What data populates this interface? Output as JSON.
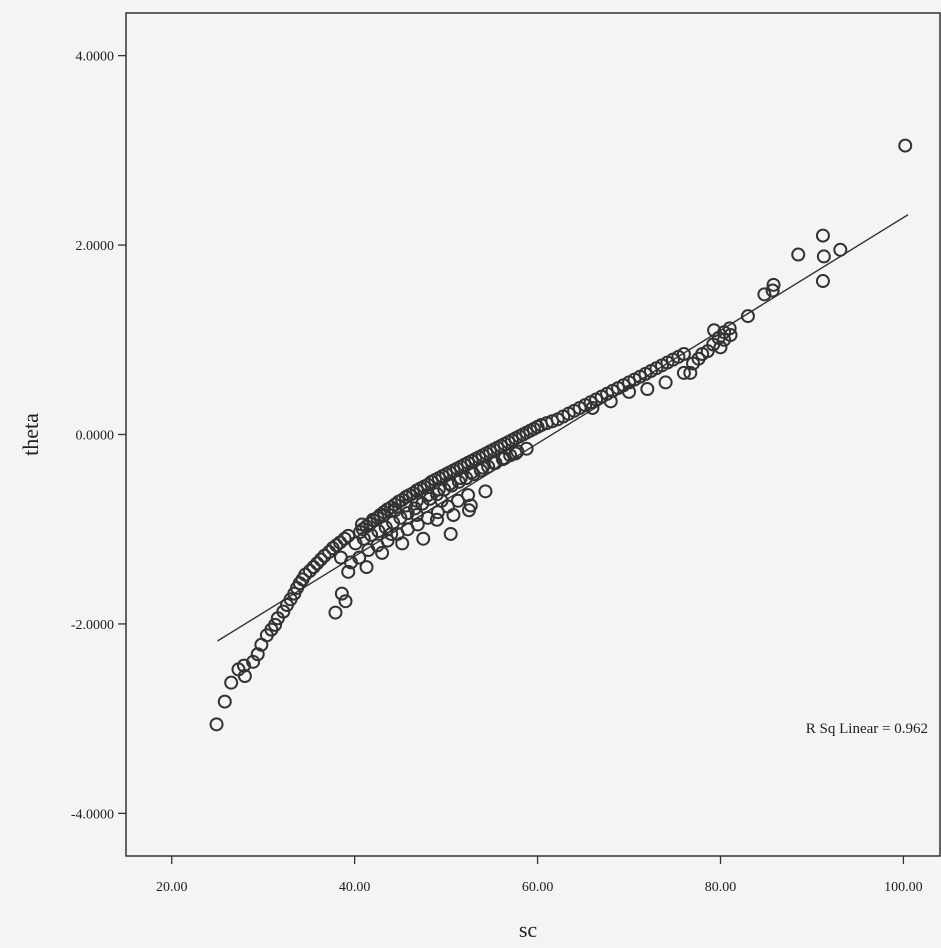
{
  "chart_data": {
    "type": "scatter",
    "title": "",
    "xlabel": "sc",
    "ylabel": "theta",
    "xlim": [
      15,
      104
    ],
    "ylim": [
      -4.45,
      4.45
    ],
    "xticks": [
      20,
      40,
      60,
      80,
      100
    ],
    "xtick_labels": [
      "20.00",
      "40.00",
      "60.00",
      "80.00",
      "100.00"
    ],
    "yticks": [
      4,
      2,
      0,
      -2,
      -4
    ],
    "ytick_labels": [
      "4.0000",
      "2.0000",
      "0.0000",
      "-2.0000",
      "-4.0000"
    ],
    "grid": false,
    "marker": "open-circle",
    "colors": {
      "marker": "#333333",
      "line": "#333333",
      "frame": "#333333",
      "background": "#f4f4f2"
    },
    "annotation": "R Sq Linear = 0.962",
    "fit_line": {
      "x": [
        25,
        100.5
      ],
      "y": [
        -2.18,
        2.32
      ]
    },
    "series": [
      {
        "x": [
          24.9,
          25.8,
          26.5,
          27.3,
          27.9,
          28.0,
          28.9,
          29.4,
          29.8,
          30.4,
          30.9,
          31.3,
          31.6,
          32.2,
          32.6,
          33.0,
          33.4,
          33.7,
          34.0,
          34.3,
          34.6,
          35.1,
          35.5,
          35.9,
          36.3,
          36.7,
          37.2,
          37.6,
          38.0,
          38.4,
          38.9,
          39.3,
          39.0,
          38.6,
          37.9,
          38.5,
          39.6,
          39.3,
          40.6,
          40.9,
          41.3,
          41.7,
          42.1,
          42.5,
          42.8,
          43.2,
          43.6,
          44.0,
          44.4,
          44.8,
          45.2,
          45.6,
          46.0,
          46.4,
          46.8,
          47.2,
          47.6,
          48.0,
          48.4,
          48.8,
          49.2,
          49.6,
          50.0,
          50.4,
          50.8,
          51.2,
          51.6,
          52.0,
          52.4,
          52.8,
          53.2,
          53.6,
          54.0,
          54.4,
          54.8,
          55.2,
          55.6,
          56.0,
          56.4,
          56.8,
          57.2,
          57.6,
          58.0,
          58.4,
          58.8,
          59.2,
          59.6,
          60.0,
          60.4,
          40.1,
          41.0,
          41.8,
          42.6,
          43.4,
          44.2,
          45.0,
          45.8,
          46.6,
          47.4,
          48.2,
          49.0,
          49.8,
          50.6,
          51.4,
          52.2,
          53.0,
          53.8,
          54.6,
          55.4,
          56.2,
          57.0,
          57.8,
          40.5,
          41.5,
          42.5,
          43.6,
          44.7,
          45.8,
          46.9,
          48.0,
          49.1,
          50.2,
          51.3,
          52.4,
          40.8,
          42.0,
          43.2,
          44.4,
          45.6,
          46.8,
          48.0,
          49.2,
          50.4,
          51.6,
          52.8,
          54.0,
          55.2,
          56.4,
          57.6,
          58.8,
          41.3,
          43.0,
          45.2,
          47.5,
          49.0,
          50.8,
          52.5,
          54.3,
          44.0,
          46.8,
          49.5,
          52.7,
          50.5,
          61.0,
          61.6,
          62.2,
          62.8,
          63.4,
          64.0,
          64.6,
          65.2,
          65.8,
          66.4,
          67.0,
          67.6,
          68.2,
          68.8,
          69.4,
          70.0,
          70.6,
          71.2,
          71.8,
          72.4,
          73.0,
          73.6,
          74.2,
          74.8,
          75.4,
          76.0,
          66.0,
          68.0,
          70.0,
          72.0,
          74.0,
          76.0,
          77.0,
          77.6,
          78.0,
          78.6,
          79.2,
          79.8,
          80.4,
          81.0,
          79.3,
          80.4,
          81.1,
          76.7,
          80.0,
          83.0,
          84.8,
          85.7,
          85.8,
          88.5,
          91.2,
          91.3,
          91.2,
          93.1,
          100.2
        ],
        "y": [
          -3.06,
          -2.82,
          -2.62,
          -2.48,
          -2.44,
          -2.55,
          -2.4,
          -2.32,
          -2.22,
          -2.12,
          -2.06,
          -2.01,
          -1.94,
          -1.87,
          -1.8,
          -1.74,
          -1.68,
          -1.62,
          -1.57,
          -1.53,
          -1.48,
          -1.44,
          -1.4,
          -1.36,
          -1.32,
          -1.28,
          -1.24,
          -1.2,
          -1.17,
          -1.14,
          -1.1,
          -1.07,
          -1.76,
          -1.68,
          -1.88,
          -1.3,
          -1.35,
          -1.45,
          -1.03,
          -1.0,
          -0.97,
          -0.94,
          -0.91,
          -0.88,
          -0.85,
          -0.82,
          -0.79,
          -0.77,
          -0.74,
          -0.71,
          -0.69,
          -0.66,
          -0.64,
          -0.62,
          -0.59,
          -0.57,
          -0.55,
          -0.53,
          -0.5,
          -0.48,
          -0.46,
          -0.44,
          -0.42,
          -0.4,
          -0.38,
          -0.36,
          -0.34,
          -0.32,
          -0.3,
          -0.28,
          -0.26,
          -0.24,
          -0.22,
          -0.2,
          -0.18,
          -0.16,
          -0.14,
          -0.12,
          -0.1,
          -0.08,
          -0.06,
          -0.04,
          -0.02,
          0.0,
          0.02,
          0.04,
          0.06,
          0.08,
          0.1,
          -1.15,
          -1.1,
          -1.06,
          -1.02,
          -0.98,
          -0.93,
          -0.88,
          -0.83,
          -0.78,
          -0.73,
          -0.68,
          -0.63,
          -0.58,
          -0.54,
          -0.5,
          -0.46,
          -0.42,
          -0.38,
          -0.34,
          -0.3,
          -0.26,
          -0.22,
          -0.18,
          -1.3,
          -1.22,
          -1.17,
          -1.12,
          -1.05,
          -1.0,
          -0.95,
          -0.88,
          -0.82,
          -0.76,
          -0.7,
          -0.64,
          -0.95,
          -0.9,
          -0.85,
          -0.8,
          -0.75,
          -0.7,
          -0.64,
          -0.58,
          -0.52,
          -0.46,
          -0.4,
          -0.35,
          -0.3,
          -0.25,
          -0.2,
          -0.15,
          -1.4,
          -1.25,
          -1.15,
          -1.1,
          -0.9,
          -0.85,
          -0.8,
          -0.6,
          -1.05,
          -0.85,
          -0.7,
          -0.75,
          -1.05,
          0.12,
          0.14,
          0.16,
          0.19,
          0.22,
          0.25,
          0.28,
          0.31,
          0.34,
          0.37,
          0.4,
          0.43,
          0.46,
          0.49,
          0.52,
          0.55,
          0.58,
          0.61,
          0.64,
          0.67,
          0.7,
          0.73,
          0.76,
          0.79,
          0.82,
          0.85,
          0.28,
          0.35,
          0.45,
          0.48,
          0.55,
          0.65,
          0.75,
          0.8,
          0.85,
          0.88,
          0.95,
          1.02,
          1.08,
          1.12,
          1.1,
          1.0,
          1.05,
          0.65,
          0.92,
          1.25,
          1.48,
          1.52,
          1.58,
          1.9,
          1.62,
          1.88,
          2.1,
          1.95,
          3.05
        ]
      }
    ]
  }
}
